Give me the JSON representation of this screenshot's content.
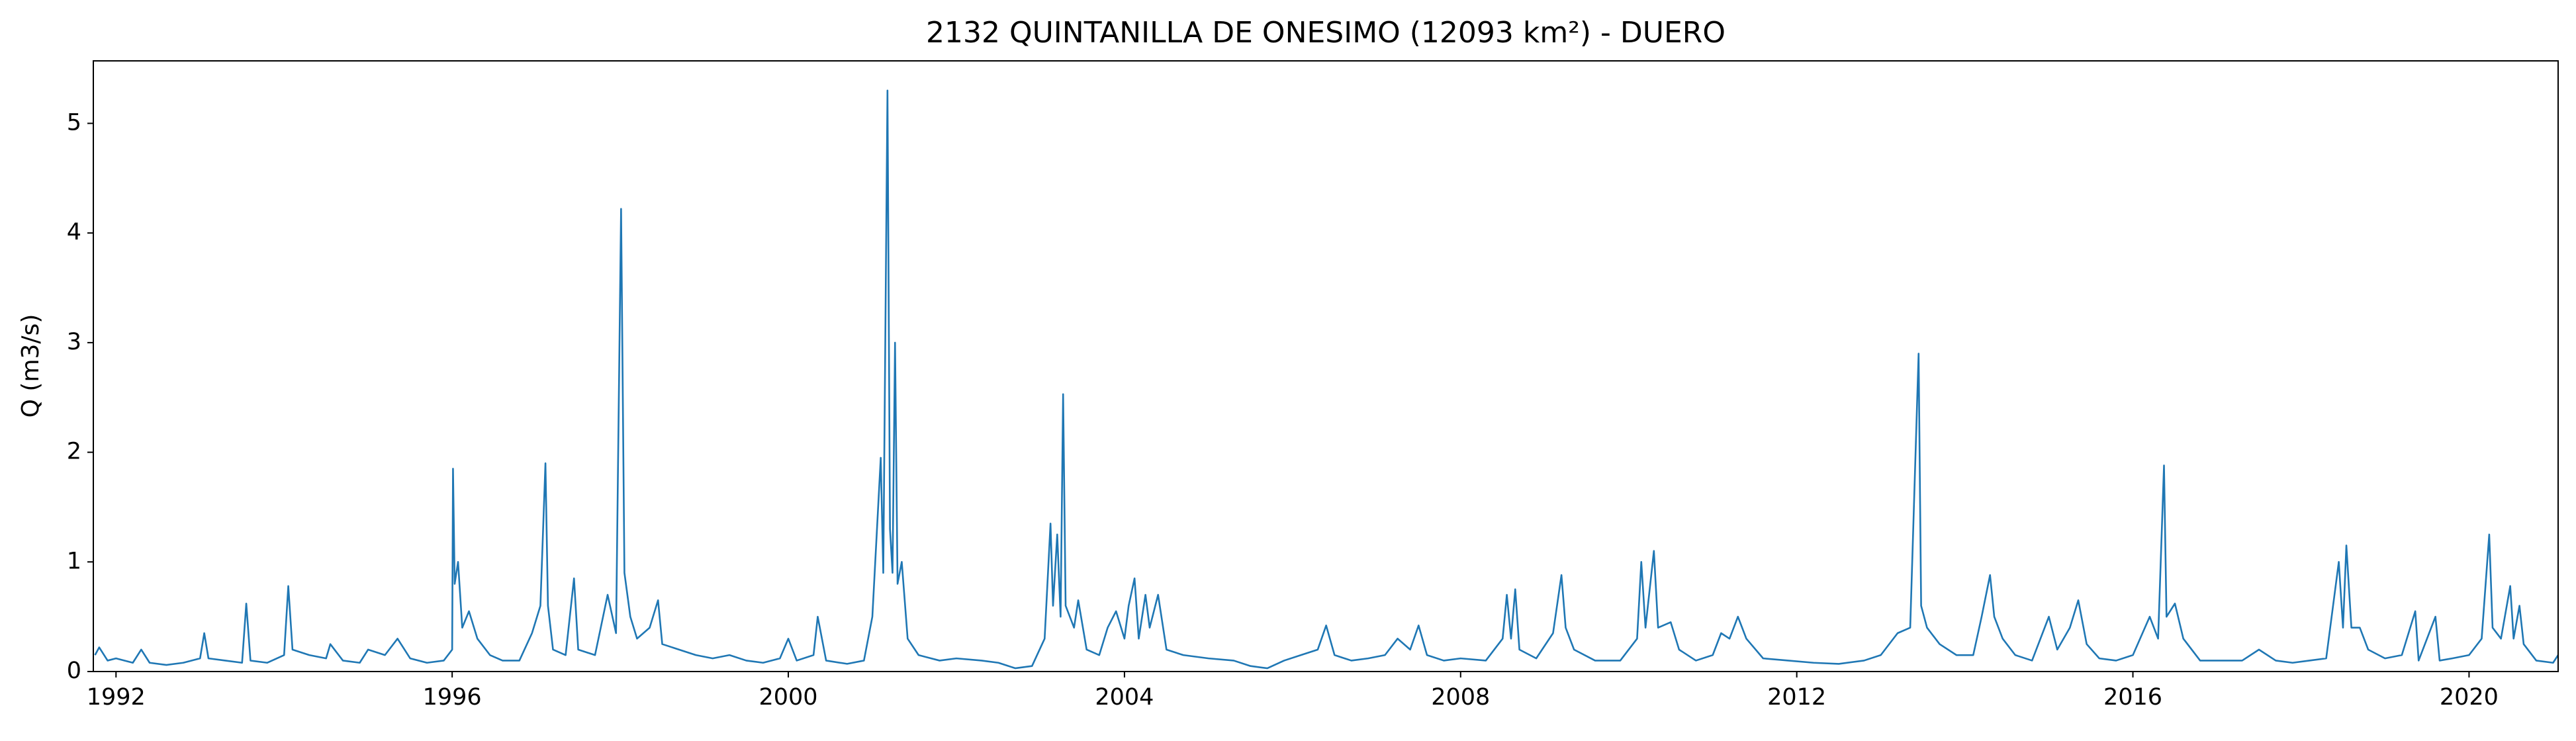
{
  "chart_data": {
    "type": "line",
    "title": "2132 QUINTANILLA DE ONESIMO (12093 km²) - DUERO",
    "ylabel": "Q (m3/s)",
    "color": "#1f77b4",
    "xlim": [
      1991.73,
      2021.06
    ],
    "ylim": [
      0,
      5.57
    ],
    "xticks": [
      1992,
      1996,
      2000,
      2004,
      2008,
      2012,
      2016,
      2020
    ],
    "yticks": [
      0,
      1,
      2,
      3,
      4,
      5
    ],
    "x": [
      1991.75,
      1991.8,
      1991.9,
      1992.0,
      1992.2,
      1992.3,
      1992.4,
      1992.6,
      1992.8,
      1993.0,
      1993.05,
      1993.1,
      1993.3,
      1993.5,
      1993.55,
      1993.6,
      1993.8,
      1994.0,
      1994.05,
      1994.1,
      1994.3,
      1994.5,
      1994.55,
      1994.7,
      1994.9,
      1995.0,
      1995.2,
      1995.35,
      1995.5,
      1995.7,
      1995.9,
      1996.0,
      1996.01,
      1996.03,
      1996.07,
      1996.12,
      1996.2,
      1996.3,
      1996.45,
      1996.6,
      1996.8,
      1996.95,
      1997.05,
      1997.11,
      1997.14,
      1997.2,
      1997.35,
      1997.45,
      1997.5,
      1997.7,
      1997.85,
      1997.95,
      1998.01,
      1998.05,
      1998.12,
      1998.2,
      1998.35,
      1998.45,
      1998.5,
      1998.7,
      1998.9,
      1999.1,
      1999.3,
      1999.5,
      1999.7,
      1999.9,
      2000.0,
      2000.1,
      2000.3,
      2000.35,
      2000.45,
      2000.7,
      2000.9,
      2001.0,
      2001.1,
      2001.13,
      2001.18,
      2001.21,
      2001.24,
      2001.27,
      2001.3,
      2001.35,
      2001.42,
      2001.55,
      2001.8,
      2002.0,
      2002.3,
      2002.5,
      2002.7,
      2002.9,
      2003.05,
      2003.12,
      2003.15,
      2003.2,
      2003.24,
      2003.27,
      2003.3,
      2003.4,
      2003.45,
      2003.55,
      2003.7,
      2003.8,
      2003.9,
      2004.0,
      2004.05,
      2004.12,
      2004.17,
      2004.25,
      2004.3,
      2004.4,
      2004.5,
      2004.7,
      2005.0,
      2005.3,
      2005.5,
      2005.7,
      2005.9,
      2006.1,
      2006.3,
      2006.4,
      2006.5,
      2006.7,
      2006.9,
      2007.1,
      2007.25,
      2007.4,
      2007.5,
      2007.6,
      2007.8,
      2008.0,
      2008.3,
      2008.5,
      2008.55,
      2008.6,
      2008.65,
      2008.7,
      2008.9,
      2009.1,
      2009.2,
      2009.25,
      2009.35,
      2009.6,
      2009.9,
      2010.1,
      2010.15,
      2010.2,
      2010.3,
      2010.35,
      2010.5,
      2010.6,
      2010.8,
      2011.0,
      2011.1,
      2011.2,
      2011.3,
      2011.4,
      2011.6,
      2011.9,
      2012.2,
      2012.5,
      2012.8,
      2013.0,
      2013.2,
      2013.35,
      2013.45,
      2013.48,
      2013.55,
      2013.7,
      2013.9,
      2014.1,
      2014.2,
      2014.3,
      2014.35,
      2014.45,
      2014.6,
      2014.8,
      2015.0,
      2015.1,
      2015.25,
      2015.35,
      2015.45,
      2015.6,
      2015.8,
      2016.0,
      2016.2,
      2016.3,
      2016.37,
      2016.4,
      2016.5,
      2016.6,
      2016.8,
      2017.0,
      2017.3,
      2017.5,
      2017.7,
      2017.9,
      2018.1,
      2018.3,
      2018.45,
      2018.5,
      2018.54,
      2018.6,
      2018.7,
      2018.8,
      2019.0,
      2019.2,
      2019.36,
      2019.4,
      2019.6,
      2019.65,
      2019.8,
      2020.0,
      2020.15,
      2020.24,
      2020.28,
      2020.38,
      2020.49,
      2020.53,
      2020.6,
      2020.65,
      2020.8,
      2021.0,
      2021.06
    ],
    "values": [
      0.15,
      0.22,
      0.1,
      0.12,
      0.08,
      0.2,
      0.08,
      0.06,
      0.08,
      0.12,
      0.35,
      0.12,
      0.1,
      0.08,
      0.62,
      0.1,
      0.08,
      0.15,
      0.78,
      0.2,
      0.15,
      0.12,
      0.25,
      0.1,
      0.08,
      0.2,
      0.15,
      0.3,
      0.12,
      0.08,
      0.1,
      0.2,
      1.85,
      0.8,
      1.0,
      0.4,
      0.55,
      0.3,
      0.15,
      0.1,
      0.1,
      0.35,
      0.6,
      1.9,
      0.6,
      0.2,
      0.15,
      0.85,
      0.2,
      0.15,
      0.7,
      0.35,
      4.22,
      0.9,
      0.5,
      0.3,
      0.4,
      0.65,
      0.25,
      0.2,
      0.15,
      0.12,
      0.15,
      0.1,
      0.08,
      0.12,
      0.3,
      0.1,
      0.15,
      0.5,
      0.1,
      0.07,
      0.1,
      0.5,
      1.95,
      0.9,
      5.3,
      1.3,
      0.9,
      3.0,
      0.8,
      1.0,
      0.3,
      0.15,
      0.1,
      0.12,
      0.1,
      0.08,
      0.03,
      0.05,
      0.3,
      1.35,
      0.6,
      1.25,
      0.5,
      2.53,
      0.6,
      0.4,
      0.65,
      0.2,
      0.15,
      0.4,
      0.55,
      0.3,
      0.6,
      0.85,
      0.3,
      0.7,
      0.4,
      0.7,
      0.2,
      0.15,
      0.12,
      0.1,
      0.05,
      0.03,
      0.1,
      0.15,
      0.2,
      0.42,
      0.15,
      0.1,
      0.12,
      0.15,
      0.3,
      0.2,
      0.42,
      0.15,
      0.1,
      0.12,
      0.1,
      0.3,
      0.7,
      0.3,
      0.75,
      0.2,
      0.12,
      0.35,
      0.88,
      0.4,
      0.2,
      0.1,
      0.1,
      0.3,
      1.0,
      0.4,
      1.1,
      0.4,
      0.45,
      0.2,
      0.1,
      0.15,
      0.35,
      0.3,
      0.5,
      0.3,
      0.12,
      0.1,
      0.08,
      0.07,
      0.1,
      0.15,
      0.35,
      0.4,
      2.9,
      0.6,
      0.4,
      0.25,
      0.15,
      0.15,
      0.5,
      0.88,
      0.5,
      0.3,
      0.15,
      0.1,
      0.5,
      0.2,
      0.4,
      0.65,
      0.25,
      0.12,
      0.1,
      0.15,
      0.5,
      0.3,
      1.88,
      0.5,
      0.62,
      0.3,
      0.1,
      0.1,
      0.1,
      0.2,
      0.1,
      0.08,
      0.1,
      0.12,
      1.0,
      0.4,
      1.15,
      0.4,
      0.4,
      0.2,
      0.12,
      0.15,
      0.55,
      0.1,
      0.5,
      0.1,
      0.12,
      0.15,
      0.3,
      1.25,
      0.4,
      0.3,
      0.78,
      0.3,
      0.6,
      0.25,
      0.1,
      0.08,
      0.15
    ]
  }
}
